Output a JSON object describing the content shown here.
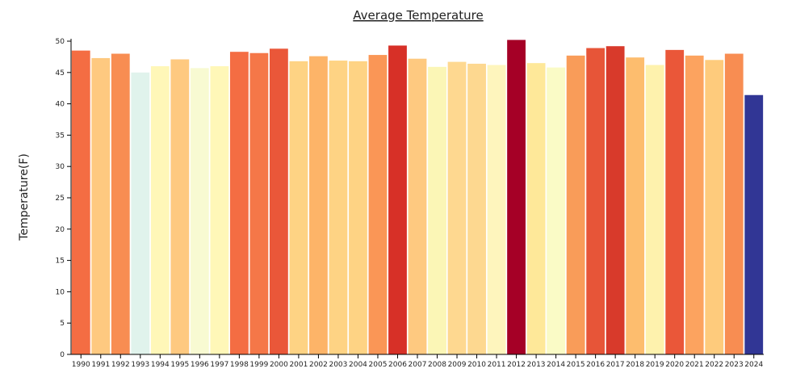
{
  "chart_data": {
    "type": "bar",
    "title": "Average Temperature",
    "xlabel": "",
    "ylabel": "Temperature(F)",
    "ylim": [
      0,
      50
    ],
    "yticks": [
      0,
      5,
      10,
      15,
      20,
      25,
      30,
      35,
      40,
      45,
      50
    ],
    "grid": false,
    "legend": "none",
    "categories": [
      "1990",
      "1991",
      "1992",
      "1993",
      "1994",
      "1995",
      "1996",
      "1997",
      "1998",
      "1999",
      "2000",
      "2001",
      "2002",
      "2003",
      "2004",
      "2005",
      "2006",
      "2007",
      "2008",
      "2009",
      "2010",
      "2011",
      "2012",
      "2013",
      "2014",
      "2015",
      "2016",
      "2017",
      "2018",
      "2019",
      "2020",
      "2021",
      "2022",
      "2023",
      "2024"
    ],
    "values": [
      48.5,
      47.3,
      48.0,
      45.0,
      46.0,
      47.1,
      45.7,
      46.0,
      48.3,
      48.1,
      48.8,
      46.8,
      47.6,
      46.9,
      46.8,
      47.8,
      49.3,
      47.2,
      45.9,
      46.7,
      46.4,
      46.2,
      50.2,
      46.5,
      45.8,
      47.7,
      48.9,
      49.2,
      47.4,
      46.2,
      48.6,
      47.7,
      47.0,
      48.0,
      41.4
    ],
    "colors": [
      "#f46d43",
      "#fec980",
      "#f88d52",
      "#e0f3ec",
      "#fff7b8",
      "#fec980",
      "#f8fad2",
      "#fff7b8",
      "#f46d43",
      "#f57748",
      "#ea5739",
      "#fed384",
      "#fdb468",
      "#fed384",
      "#fed384",
      "#fa9656",
      "#d73027",
      "#fec980",
      "#fbf6b6",
      "#fed890",
      "#fdd890",
      "#fef5bd",
      "#a50026",
      "#fee899",
      "#fafbc6",
      "#f99c59",
      "#e75538",
      "#d83a2b",
      "#fdbd6e",
      "#fef2ad",
      "#ea5739",
      "#fca35f",
      "#fecb7c",
      "#f88d52",
      "#313695"
    ]
  }
}
